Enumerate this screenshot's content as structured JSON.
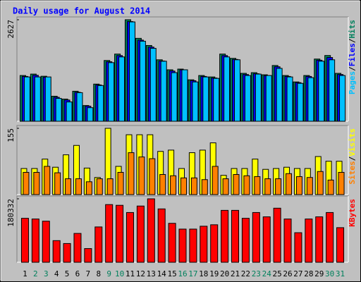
{
  "chart_data": [
    {
      "type": "bar",
      "title": "Daily usage for August 2014",
      "ylim": [
        0,
        2627
      ],
      "yticks": [
        2627
      ],
      "legend_separator": "/",
      "series": [
        {
          "name": "Hits",
          "color": "#00805c",
          "values": [
            1184,
            1221,
            1165,
            648,
            574,
            777,
            407,
            962,
            1573,
            1739,
            2627,
            2146,
            1961,
            1591,
            1332,
            1350,
            1073,
            1184,
            1147,
            1739,
            1628,
            1240,
            1258,
            1203,
            1443,
            1184,
            1018,
            1184,
            1610,
            1702,
            1240
          ]
        },
        {
          "name": "Files",
          "color": "#0000ff",
          "values": [
            1160,
            1190,
            1140,
            620,
            550,
            750,
            390,
            940,
            1540,
            1700,
            2580,
            2100,
            1920,
            1560,
            1300,
            1330,
            1050,
            1160,
            1120,
            1700,
            1600,
            1210,
            1230,
            1180,
            1410,
            1160,
            1000,
            1160,
            1580,
            1650,
            1210
          ]
        },
        {
          "name": "Pages",
          "color": "#00c0ff",
          "values": [
            1147,
            1147,
            1147,
            592,
            500,
            740,
            352,
            925,
            1517,
            1665,
            2571,
            2072,
            1887,
            1554,
            1258,
            1332,
            1018,
            1147,
            1110,
            1665,
            1591,
            1184,
            1221,
            1184,
            1369,
            1147,
            981,
            1128,
            1554,
            1591,
            1184
          ]
        }
      ]
    },
    {
      "type": "bar",
      "ylim": [
        0,
        155
      ],
      "yticks": [
        155
      ],
      "legend_separator": "/",
      "series": [
        {
          "name": "Visits",
          "color": "#ffff00",
          "values": [
            61,
            61,
            83,
            64,
            93,
            115,
            62,
            40,
            155,
            66,
            140,
            140,
            140,
            101,
            104,
            61,
            98,
            104,
            121,
            45,
            61,
            61,
            83,
            59,
            61,
            64,
            61,
            61,
            89,
            78,
            78
          ]
        },
        {
          "name": "Sites",
          "color": "#ff8000",
          "values": [
            52,
            52,
            66,
            51,
            37,
            37,
            30,
            37,
            37,
            52,
            98,
            88,
            84,
            47,
            44,
            39,
            39,
            35,
            66,
            37,
            47,
            44,
            42,
            37,
            37,
            49,
            42,
            40,
            54,
            34,
            52
          ]
        }
      ]
    },
    {
      "type": "bar",
      "ylim": [
        0,
        180332
      ],
      "yticks": [
        180332
      ],
      "categories": [
        "1",
        "2",
        "3",
        "4",
        "5",
        "6",
        "7",
        "8",
        "9",
        "10",
        "11",
        "12",
        "13",
        "14",
        "15",
        "16",
        "17",
        "18",
        "19",
        "20",
        "21",
        "22",
        "23",
        "24",
        "25",
        "26",
        "27",
        "28",
        "29",
        "30",
        "31"
      ],
      "category_color": "#000000",
      "weekend_color": "#00805c",
      "weekend_indices": [
        1,
        2,
        8,
        9,
        15,
        16,
        22,
        23,
        29,
        30
      ],
      "series": [
        {
          "name": "KBytes",
          "color": "#ff0000",
          "values": [
            125000,
            122950,
            116800,
            61480,
            53280,
            81970,
            38930,
            100410,
            163940,
            161890,
            141400,
            159840,
            180332,
            151640,
            110660,
            94260,
            94260,
            102460,
            106560,
            147540,
            147540,
            125000,
            141400,
            129100,
            153690,
            122950,
            84020,
            122950,
            129100,
            141400,
            98360
          ]
        }
      ]
    }
  ]
}
